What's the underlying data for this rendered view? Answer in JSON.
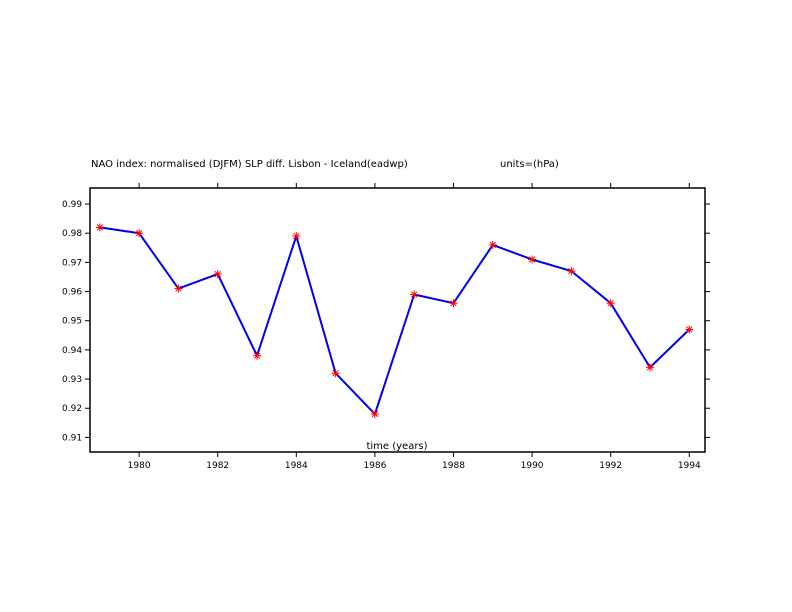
{
  "chart_data": {
    "type": "line",
    "title": "NAO index: normalised (DJFM) SLP diff. Lisbon - Iceland(eadwp)",
    "units_label": "units=(hPa)",
    "xlabel": "time (years)",
    "ylabel": "",
    "xlim": [
      1978.75,
      1994.4
    ],
    "ylim": [
      0.905,
      0.9955
    ],
    "xticks": [
      1980,
      1982,
      1984,
      1986,
      1988,
      1990,
      1992,
      1994
    ],
    "xtick_labels": [
      "1980",
      "1982",
      "1984",
      "1986",
      "1988",
      "1990",
      "1992",
      "1994"
    ],
    "yticks": [
      0.91,
      0.92,
      0.93,
      0.94,
      0.95,
      0.96,
      0.97,
      0.98,
      0.99
    ],
    "ytick_labels": [
      "0.91",
      "0.92",
      "0.93",
      "0.94",
      "0.95",
      "0.96",
      "0.97",
      "0.98",
      "0.99"
    ],
    "grid": false,
    "series": [
      {
        "line_color": "#0000ee",
        "marker_color": "#ff0000",
        "marker": "asterisk",
        "x": [
          1979,
          1980,
          1981,
          1982,
          1983,
          1984,
          1985,
          1986,
          1987,
          1988,
          1989,
          1990,
          1991,
          1992,
          1993,
          1994
        ],
        "y": [
          0.982,
          0.98,
          0.961,
          0.966,
          0.938,
          0.979,
          0.932,
          0.918,
          0.959,
          0.956,
          0.976,
          0.971,
          0.967,
          0.956,
          0.934,
          0.947
        ]
      }
    ]
  }
}
